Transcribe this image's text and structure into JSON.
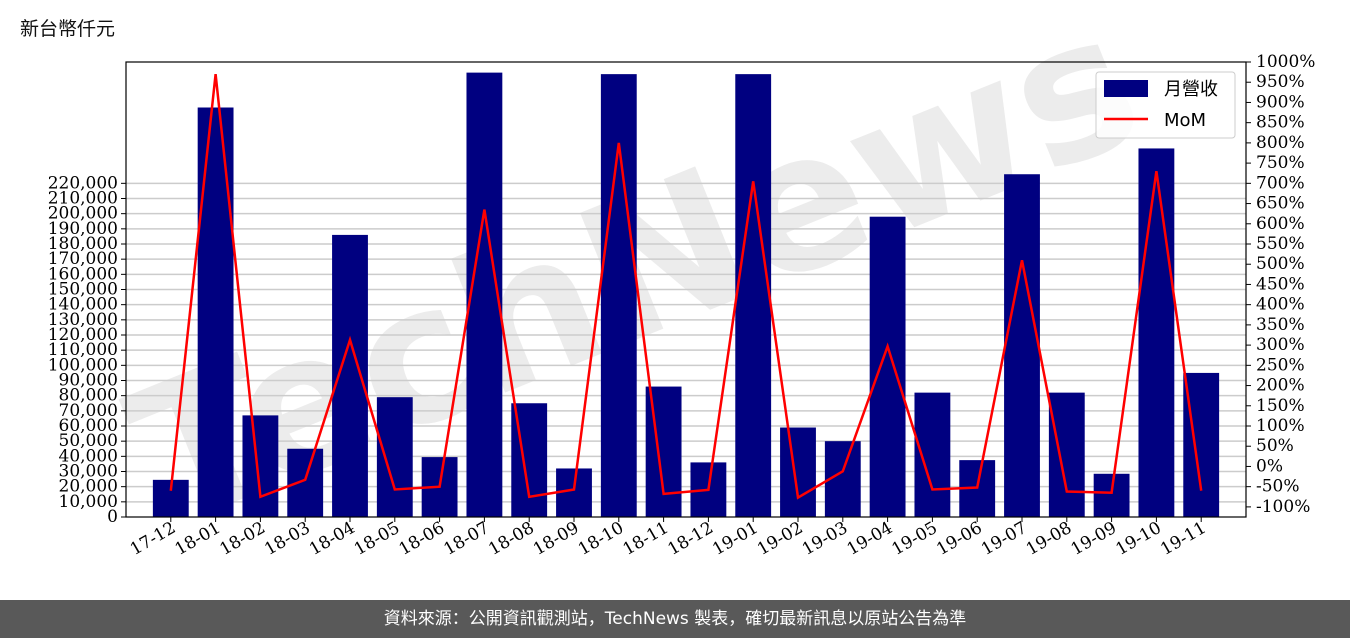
{
  "unit_label": "新台幣仟元",
  "footer_text": "資料來源：公開資訊觀測站，TechNews 製表，確切最新訊息以原站公告為準",
  "watermark_text": "TechNews",
  "colors": {
    "bar": "#000080",
    "line": "#ff0000",
    "grid": "#cccccc",
    "footer_bg": "#595959"
  },
  "chart_data": {
    "type": "bar",
    "categories": [
      "17-12",
      "18-01",
      "18-02",
      "18-03",
      "18-04",
      "18-05",
      "18-06",
      "18-07",
      "18-08",
      "18-09",
      "18-10",
      "18-11",
      "18-12",
      "19-01",
      "19-02",
      "19-03",
      "19-04",
      "19-05",
      "19-06",
      "19-07",
      "19-08",
      "19-09",
      "19-10",
      "19-11"
    ],
    "series": [
      {
        "name": "月營收",
        "type": "bar",
        "axis": "left",
        "values": [
          24500,
          270000,
          67000,
          45000,
          186000,
          79000,
          39500,
          293000,
          75000,
          32000,
          292000,
          86000,
          36000,
          292000,
          59000,
          50000,
          198000,
          82000,
          37500,
          226000,
          82000,
          28500,
          243000,
          95000
        ]
      },
      {
        "name": "MoM",
        "type": "line",
        "axis": "right",
        "values": [
          -60,
          970,
          -75,
          -33,
          313,
          -57,
          -50,
          635,
          -75,
          -57,
          800,
          -68,
          -58,
          705,
          -77,
          -12,
          297,
          -57,
          -52,
          510,
          -62,
          -65,
          730,
          -60
        ]
      }
    ],
    "left_axis": {
      "ylim": [
        0,
        300000
      ],
      "ticks": [
        0,
        10000,
        20000,
        30000,
        40000,
        50000,
        60000,
        70000,
        80000,
        90000,
        100000,
        110000,
        120000,
        130000,
        140000,
        150000,
        160000,
        170000,
        180000,
        190000,
        200000,
        210000,
        220000
      ],
      "tick_labels": [
        "0",
        "10,000",
        "20,000",
        "30,000",
        "40,000",
        "50,000",
        "60,000",
        "70,000",
        "80,000",
        "90,000",
        "100,000",
        "110,000",
        "120,000",
        "130,000",
        "140,000",
        "150,000",
        "160,000",
        "170,000",
        "180,000",
        "190,000",
        "200,000",
        "210,000",
        "220,000"
      ]
    },
    "right_axis": {
      "ylim": [
        -125,
        1000
      ],
      "ticks": [
        -100,
        -50,
        0,
        50,
        100,
        150,
        200,
        250,
        300,
        350,
        400,
        450,
        500,
        550,
        600,
        650,
        700,
        750,
        800,
        850,
        900,
        950,
        1000
      ],
      "tick_labels": [
        "-100%",
        "-50%",
        "0%",
        "50%",
        "100%",
        "150%",
        "200%",
        "250%",
        "300%",
        "350%",
        "400%",
        "450%",
        "500%",
        "550%",
        "600%",
        "650%",
        "700%",
        "750%",
        "800%",
        "850%",
        "900%",
        "950%",
        "1000%"
      ]
    },
    "grid": true,
    "legend_position": "top-right"
  }
}
